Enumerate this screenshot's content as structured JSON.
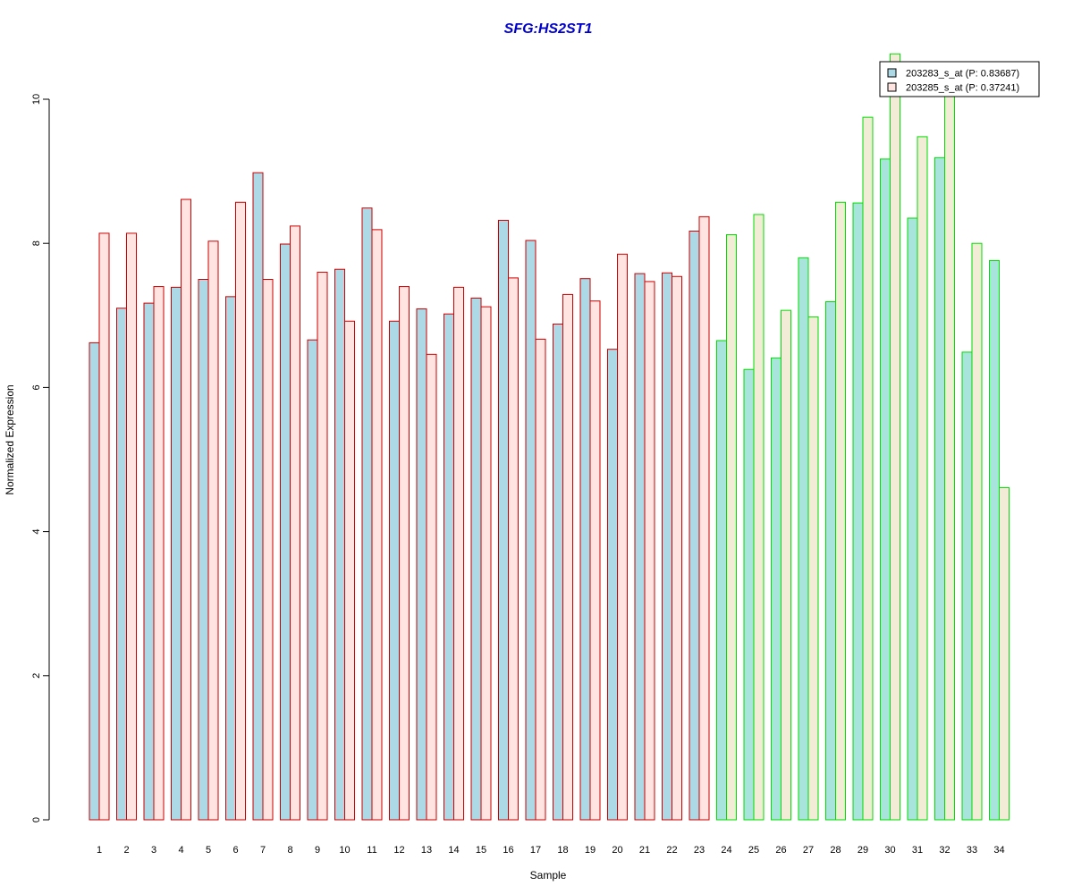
{
  "chart_data": {
    "type": "bar",
    "title": "SFG:HS2ST1",
    "xlabel": "Sample",
    "ylabel": "Normalized Expression",
    "ylim": [
      0,
      10
    ],
    "yticks": [
      "0",
      "2",
      "4",
      "6",
      "8",
      "10"
    ],
    "grid": false,
    "legend_position": "top-right",
    "categories": [
      "1",
      "2",
      "3",
      "4",
      "5",
      "6",
      "7",
      "8",
      "9",
      "10",
      "11",
      "12",
      "13",
      "14",
      "15",
      "16",
      "17",
      "18",
      "19",
      "20",
      "21",
      "22",
      "23",
      "24",
      "25",
      "26",
      "27",
      "28",
      "29",
      "30",
      "31",
      "32",
      "33",
      "34"
    ],
    "series": [
      {
        "name": "203283_s_at (P: 0.83687)",
        "values": [
          6.62,
          7.1,
          7.17,
          7.39,
          7.5,
          7.26,
          8.98,
          7.99,
          6.66,
          7.64,
          8.49,
          6.92,
          7.09,
          7.02,
          7.24,
          8.32,
          8.04,
          6.88,
          7.51,
          6.53,
          7.58,
          7.59,
          8.17,
          6.65,
          6.25,
          6.41,
          7.8,
          7.19,
          8.56,
          9.17,
          8.35,
          9.19,
          6.49,
          7.76
        ]
      },
      {
        "name": "203285_s_at (P: 0.37241)",
        "values": [
          8.14,
          8.14,
          7.4,
          8.61,
          8.03,
          8.57,
          7.5,
          8.24,
          7.6,
          6.92,
          8.19,
          7.4,
          6.46,
          7.39,
          7.12,
          7.52,
          6.67,
          7.29,
          7.2,
          7.85,
          7.47,
          7.54,
          8.37,
          8.12,
          8.4,
          7.07,
          6.98,
          8.57,
          9.75,
          10.63,
          9.48,
          10.13,
          8.0,
          4.61
        ]
      }
    ],
    "group_split_index": 23,
    "colors": {
      "group1_series1_fill": "#add8e6",
      "group1_series2_fill": "#ffe4e1",
      "group1_border": "#cc0000",
      "group2_series1_fill": "#a8e4dc",
      "group2_series2_fill": "#f2ecd6",
      "group2_border": "#00dd00",
      "title": "#0000cc"
    }
  }
}
